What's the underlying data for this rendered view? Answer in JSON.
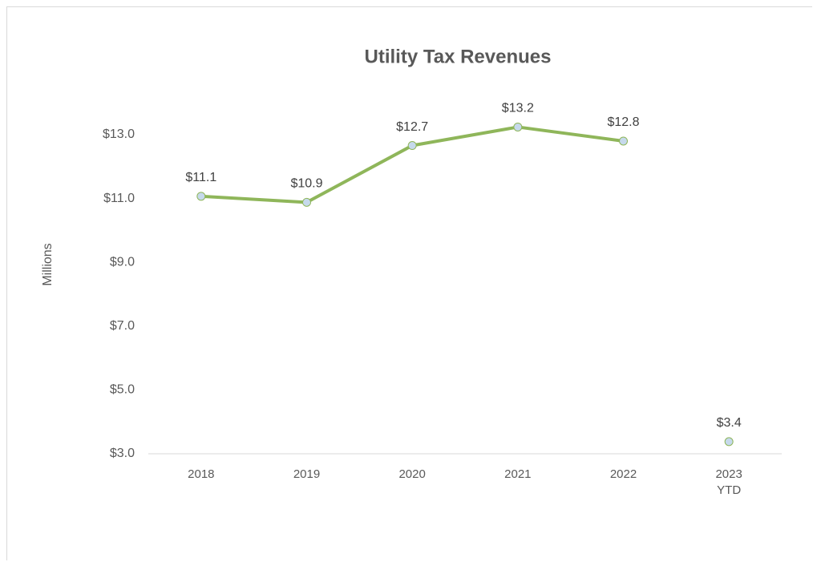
{
  "chart_data": {
    "type": "line",
    "title": "Utility Tax Revenues",
    "y_label": "Millions",
    "categories": [
      "2018",
      "2019",
      "2020",
      "2021",
      "2022",
      "2023 YTD"
    ],
    "series": [
      {
        "color": "#8fb65a",
        "marker_color": "#c6d9ec",
        "line": true,
        "values": [
          11.07,
          10.88,
          12.66,
          13.24,
          12.8,
          null
        ],
        "value_labels": [
          "$11.1",
          "$10.9",
          "$12.7",
          "$13.2",
          "$12.8",
          null
        ]
      },
      {
        "color": "#8fb65a",
        "marker_color": "#c6d9ec",
        "line": false,
        "values": [
          null,
          null,
          null,
          null,
          null,
          3.38
        ],
        "value_labels": [
          null,
          null,
          null,
          null,
          null,
          "$3.4"
        ]
      }
    ],
    "ylim": [
      3,
      14
    ],
    "yticks": [
      {
        "value": 3,
        "label": "$3.0"
      },
      {
        "value": 5,
        "label": "$5.0"
      },
      {
        "value": 7,
        "label": "$7.0"
      },
      {
        "value": 9,
        "label": "$9.0"
      },
      {
        "value": 11,
        "label": "$11.0"
      },
      {
        "value": 13,
        "label": "$13.0"
      }
    ],
    "grid": false
  }
}
